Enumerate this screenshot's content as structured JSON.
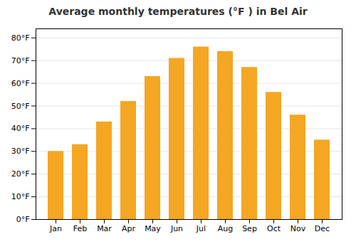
{
  "chart_data": {
    "type": "bar",
    "title": "Average monthly temperatures (°F ) in Bel Air",
    "categories": [
      "Jan",
      "Feb",
      "Mar",
      "Apr",
      "May",
      "Jun",
      "Jul",
      "Aug",
      "Sep",
      "Oct",
      "Nov",
      "Dec"
    ],
    "values": [
      30,
      33,
      43,
      52,
      63,
      71,
      76,
      74,
      67,
      56,
      46,
      35
    ],
    "color": "#F5A623",
    "ylim": [
      0,
      84
    ],
    "yticks": [
      {
        "value": 0,
        "label": "0°F"
      },
      {
        "value": 10,
        "label": "10°F"
      },
      {
        "value": 20,
        "label": "20°F"
      },
      {
        "value": 30,
        "label": "30°F"
      },
      {
        "value": 40,
        "label": "40°F"
      },
      {
        "value": 50,
        "label": "50°F"
      },
      {
        "value": 60,
        "label": "60°F"
      },
      {
        "value": 70,
        "label": "70°F"
      },
      {
        "value": 80,
        "label": "80°F"
      }
    ],
    "grid": true
  }
}
